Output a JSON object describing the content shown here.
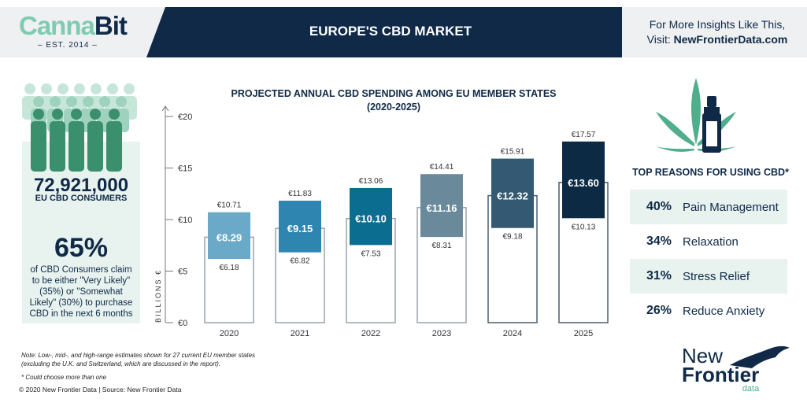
{
  "header": {
    "logo_main": "Canna",
    "logo_accent": "Bit",
    "logo_est": "– EST. 2014 –",
    "title": "EUROPE'S CBD MARKET",
    "insights_line1": "For More Insights Like This,",
    "insights_line2_prefix": "Visit: ",
    "insights_link": "NewFrontierData.com"
  },
  "left_panel": {
    "consumers_count": "72,921,000",
    "consumers_label": "EU CBD CONSUMERS",
    "likely_pct": "65%",
    "likely_text": "of CBD Consumers claim to be either \"Very Likely\" (35%) or \"Somewhat Likely\" (30%) to purchase CBD in the next 6 months"
  },
  "chart_data": {
    "type": "bar",
    "title": "PROJECTED ANNUAL CBD SPENDING AMONG EU MEMBER STATES",
    "subtitle": "(2020-2025)",
    "ylabel": "BILLIONS €",
    "ylim": [
      0,
      20
    ],
    "yticks": [
      "€0",
      "€5",
      "€10",
      "€15",
      "€20"
    ],
    "categories": [
      "2020",
      "2021",
      "2022",
      "2023",
      "2024",
      "2025"
    ],
    "series": [
      {
        "name": "low",
        "values": [
          6.18,
          6.82,
          7.53,
          8.31,
          9.18,
          10.13
        ]
      },
      {
        "name": "mid",
        "values": [
          8.29,
          9.15,
          10.1,
          11.16,
          12.32,
          13.6
        ]
      },
      {
        "name": "high",
        "values": [
          10.71,
          11.83,
          13.06,
          14.41,
          15.91,
          17.57
        ]
      }
    ],
    "low_labels": [
      "€6.18",
      "€6.82",
      "€7.53",
      "€8.31",
      "€9.18",
      "€10.13"
    ],
    "mid_labels": [
      "€8.29",
      "€9.15",
      "€10.10",
      "€11.16",
      "€12.32",
      "€13.60"
    ],
    "high_labels": [
      "€10.71",
      "€11.83",
      "€13.06",
      "€14.41",
      "€15.91",
      "€17.57"
    ],
    "colors": [
      "#6aaac8",
      "#2e86b0",
      "#0b6e90",
      "#6a8a9c",
      "#335a72",
      "#0d2a45"
    ]
  },
  "reasons": {
    "heading": "TOP REASONS FOR USING CBD*",
    "items": [
      {
        "pct": "40%",
        "label": "Pain Management"
      },
      {
        "pct": "34%",
        "label": "Relaxation"
      },
      {
        "pct": "31%",
        "label": "Stress Relief"
      },
      {
        "pct": "26%",
        "label": "Reduce Anxiety"
      }
    ]
  },
  "footer": {
    "note1": "Note: Low-, mid-, and high-range estimates shown for 27 current EU member states",
    "note2": "(excluding the U.K. and Switzerland, which are discussed in the report).",
    "note3": "* Could choose more than one",
    "copyright": "© 2020  New Frontier Data | Source: New Frontier Data",
    "brand_line1": "New",
    "brand_line2": "Frontier",
    "brand_line3": "data"
  }
}
